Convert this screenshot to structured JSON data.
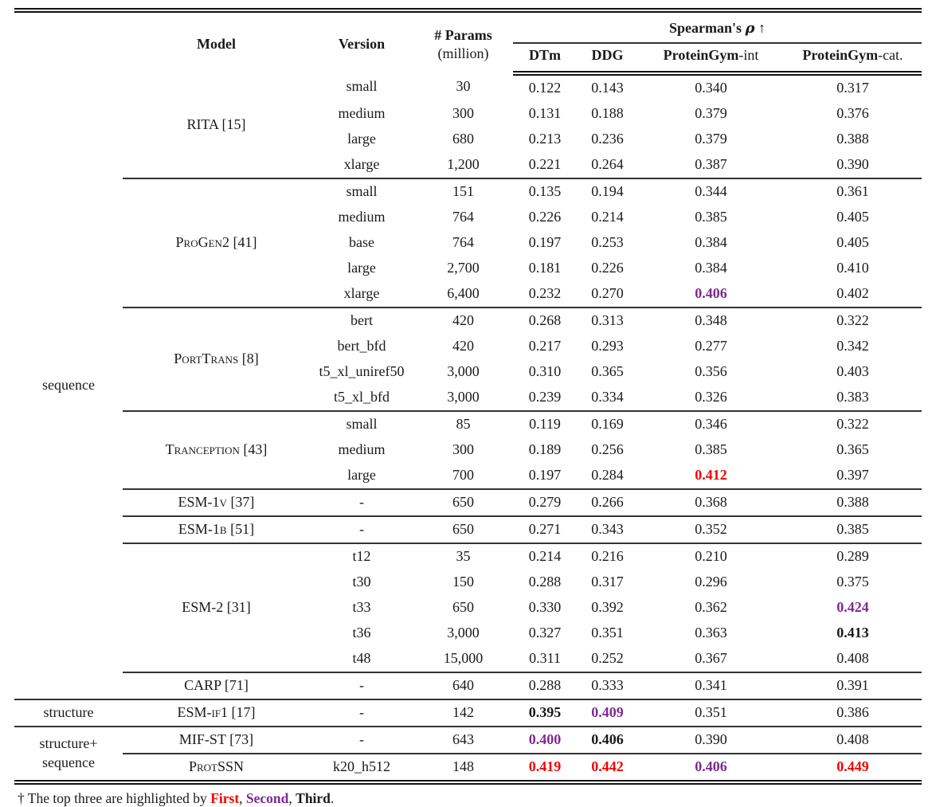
{
  "highlight_colors": {
    "first": "#f50000",
    "second": "#7d2b8e",
    "third": "#1a1a1a"
  },
  "header": {
    "model": "Model",
    "version": "Version",
    "params_line1": "# Params",
    "params_line2": "(million)",
    "spearman_prefix": "Spearman's",
    "spearman_rho": "ρ",
    "spearman_arrow": "↑",
    "metrics": [
      {
        "bold": "DTm",
        "rest": ""
      },
      {
        "bold": "DDG",
        "rest": ""
      },
      {
        "bold": "ProteinGym",
        "rest": "-int"
      },
      {
        "bold": "ProteinGym",
        "rest": "-cat."
      }
    ]
  },
  "rows": [
    {
      "group": "sequence",
      "group_span": 24,
      "model": "RITA [15]",
      "model_span": 4,
      "version": "small",
      "params": "30",
      "values": [
        "0.122",
        "0.143",
        "0.340",
        "0.317"
      ]
    },
    {
      "version": "medium",
      "params": "300",
      "values": [
        "0.131",
        "0.188",
        "0.379",
        "0.376"
      ]
    },
    {
      "version": "large",
      "params": "680",
      "values": [
        "0.213",
        "0.236",
        "0.379",
        "0.388"
      ]
    },
    {
      "version": "xlarge",
      "params": "1,200",
      "values": [
        "0.221",
        "0.264",
        "0.387",
        "0.390"
      ]
    },
    {
      "model": "ProGen2 [41]",
      "model_span": 5,
      "rule": "sub",
      "version": "small",
      "params": "151",
      "values": [
        "0.135",
        "0.194",
        "0.344",
        "0.361"
      ]
    },
    {
      "version": "medium",
      "params": "764",
      "values": [
        "0.226",
        "0.214",
        "0.385",
        "0.405"
      ]
    },
    {
      "version": "base",
      "params": "764",
      "values": [
        "0.197",
        "0.253",
        "0.384",
        "0.405"
      ]
    },
    {
      "version": "large",
      "params": "2,700",
      "values": [
        "0.181",
        "0.226",
        "0.384",
        "0.410"
      ]
    },
    {
      "version": "xlarge",
      "params": "6,400",
      "values": [
        "0.232",
        "0.270",
        "0.406",
        "0.402"
      ],
      "hl": [
        null,
        null,
        "second",
        null
      ]
    },
    {
      "model": "PortTrans [8]",
      "model_span": 4,
      "rule": "sub",
      "version": "bert",
      "params": "420",
      "values": [
        "0.268",
        "0.313",
        "0.348",
        "0.322"
      ]
    },
    {
      "version": "bert_bfd",
      "params": "420",
      "values": [
        "0.217",
        "0.293",
        "0.277",
        "0.342"
      ]
    },
    {
      "version": "t5_xl_uniref50",
      "params": "3,000",
      "values": [
        "0.310",
        "0.365",
        "0.356",
        "0.403"
      ]
    },
    {
      "version": "t5_xl_bfd",
      "params": "3,000",
      "values": [
        "0.239",
        "0.334",
        "0.326",
        "0.383"
      ]
    },
    {
      "model": "Tranception [43]",
      "model_span": 3,
      "rule": "sub",
      "version": "small",
      "params": "85",
      "values": [
        "0.119",
        "0.169",
        "0.346",
        "0.322"
      ]
    },
    {
      "version": "medium",
      "params": "300",
      "values": [
        "0.189",
        "0.256",
        "0.385",
        "0.365"
      ]
    },
    {
      "version": "large",
      "params": "700",
      "values": [
        "0.197",
        "0.284",
        "0.412",
        "0.397"
      ],
      "hl": [
        null,
        null,
        "first",
        null
      ]
    },
    {
      "model": "ESM-1v [37]",
      "model_span": 1,
      "rule": "sub",
      "version": "-",
      "params": "650",
      "values": [
        "0.279",
        "0.266",
        "0.368",
        "0.388"
      ]
    },
    {
      "model": "ESM-1b [51]",
      "model_span": 1,
      "rule": "sub",
      "version": "-",
      "params": "650",
      "values": [
        "0.271",
        "0.343",
        "0.352",
        "0.385"
      ]
    },
    {
      "model": "ESM-2 [31]",
      "model_span": 5,
      "rule": "sub",
      "version": "t12",
      "params": "35",
      "values": [
        "0.214",
        "0.216",
        "0.210",
        "0.289"
      ]
    },
    {
      "version": "t30",
      "params": "150",
      "values": [
        "0.288",
        "0.317",
        "0.296",
        "0.375"
      ]
    },
    {
      "version": "t33",
      "params": "650",
      "values": [
        "0.330",
        "0.392",
        "0.362",
        "0.424"
      ],
      "hl": [
        null,
        null,
        null,
        "second"
      ]
    },
    {
      "version": "t36",
      "params": "3,000",
      "values": [
        "0.327",
        "0.351",
        "0.363",
        "0.413"
      ],
      "hl": [
        null,
        null,
        null,
        "third"
      ]
    },
    {
      "version": "t48",
      "params": "15,000",
      "values": [
        "0.311",
        "0.252",
        "0.367",
        "0.408"
      ]
    },
    {
      "model": "CARP [71]",
      "model_span": 1,
      "rule": "sub",
      "version": "-",
      "params": "640",
      "values": [
        "0.288",
        "0.333",
        "0.341",
        "0.391"
      ]
    },
    {
      "group": "structure",
      "group_span": 1,
      "model": "ESM-if1 [17]",
      "model_span": 1,
      "rule": "full",
      "version": "-",
      "params": "142",
      "values": [
        "0.395",
        "0.409",
        "0.351",
        "0.386"
      ],
      "hl": [
        "third",
        "second",
        null,
        null
      ]
    },
    {
      "group": "structure+\nsequence",
      "group_span": 2,
      "model": "MIF-ST [73]",
      "model_span": 1,
      "rule": "full",
      "version": "-",
      "params": "643",
      "values": [
        "0.400",
        "0.406",
        "0.390",
        "0.408"
      ],
      "hl": [
        "second",
        "third",
        null,
        null
      ]
    },
    {
      "model": "ProtSSN",
      "model_span": 1,
      "rule": "sub",
      "version": "k20_h512",
      "params": "148",
      "values": [
        "0.419",
        "0.442",
        "0.406",
        "0.449"
      ],
      "hl": [
        "first",
        "first",
        "second",
        "first"
      ]
    }
  ],
  "footnote": {
    "prefix": "† The top three are highlighted by ",
    "first": "First",
    "sep1": ", ",
    "second": "Second",
    "sep2": ", ",
    "third": "Third",
    "suffix": "."
  }
}
